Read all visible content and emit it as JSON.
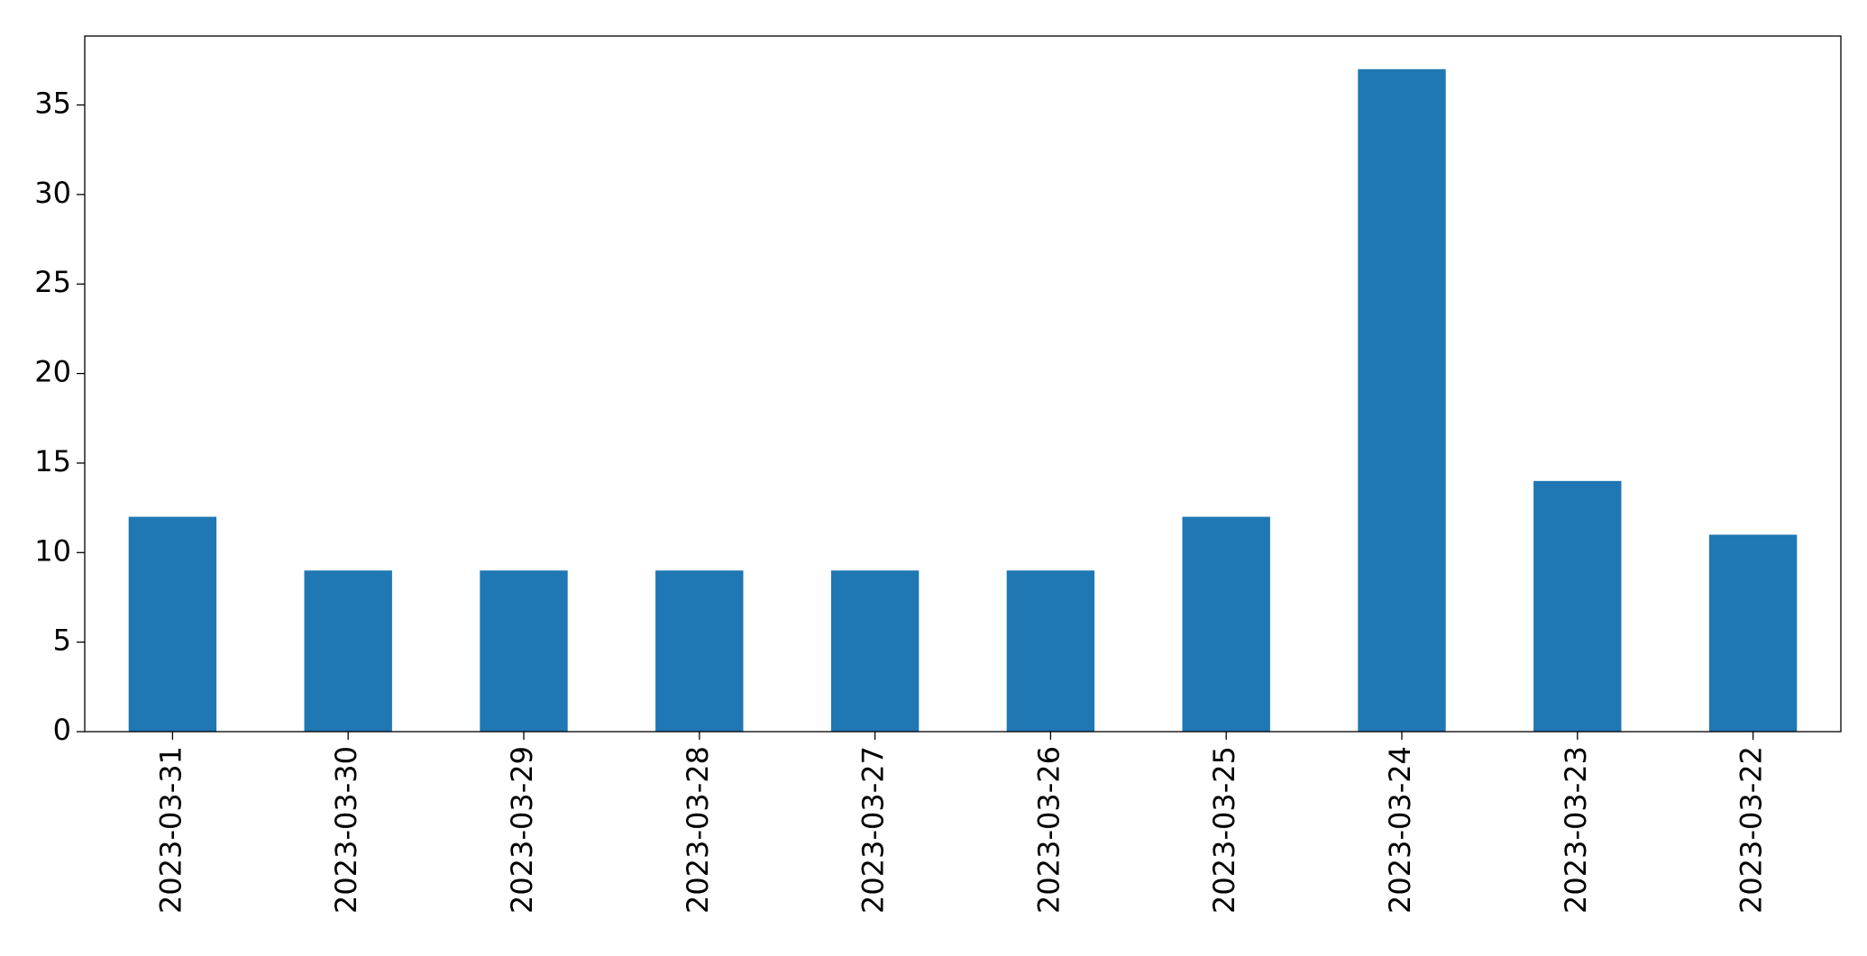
{
  "chart_data": {
    "type": "bar",
    "categories": [
      "2023-03-31",
      "2023-03-30",
      "2023-03-29",
      "2023-03-28",
      "2023-03-27",
      "2023-03-26",
      "2023-03-25",
      "2023-03-24",
      "2023-03-23",
      "2023-03-22"
    ],
    "values": [
      12,
      9,
      9,
      9,
      9,
      9,
      12,
      37,
      14,
      11
    ],
    "color": "#1f77b4",
    "ylim": [
      0,
      38.85
    ],
    "yticks": [
      0,
      5,
      10,
      15,
      20,
      25,
      30,
      35
    ],
    "grid": false
  }
}
